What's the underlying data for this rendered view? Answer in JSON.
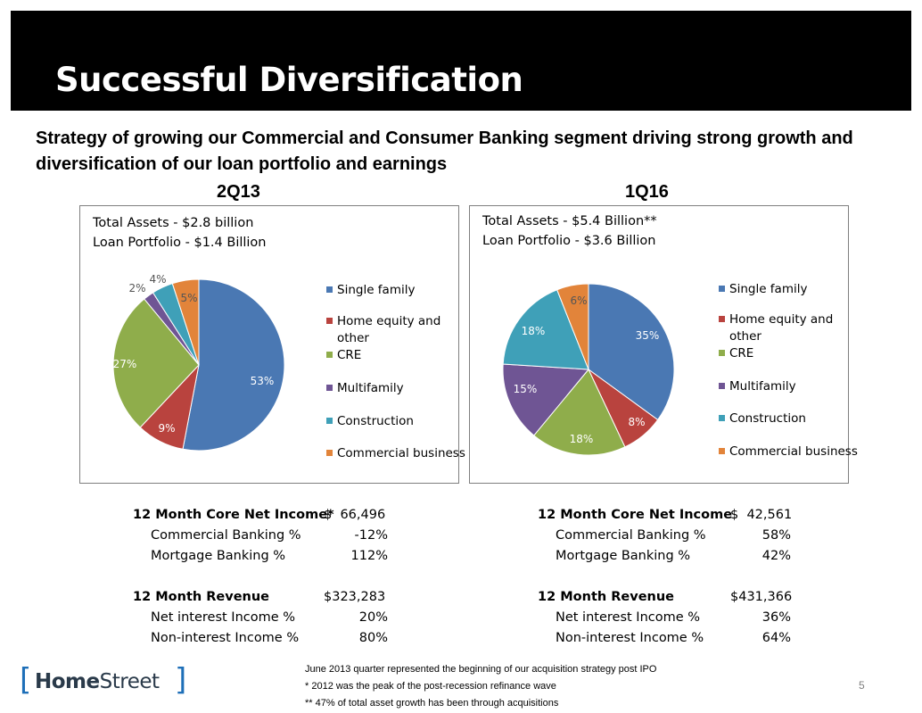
{
  "title": "Successful Diversification",
  "subtitle": "Strategy of growing our Commercial and Consumer Banking segment driving strong growth and diversification of our loan portfolio and earnings",
  "chart_data": [
    {
      "type": "pie",
      "title": "2Q13",
      "header_lines": [
        "Total Assets - $2.8 billion",
        "Loan Portfolio - $1.4 Billion"
      ],
      "categories": [
        "Single family",
        "Home equity and other",
        "CRE",
        "Multifamily",
        "Construction",
        "Commercial business"
      ],
      "values": [
        53,
        9,
        27,
        2,
        4,
        5
      ],
      "labels": [
        "53%",
        "9%",
        "27%",
        "2%",
        "4%",
        "5%"
      ],
      "colors": [
        "#4a78b3",
        "#b9433e",
        "#8fad4b",
        "#6f5594",
        "#3fa0b8",
        "#e2843a"
      ],
      "legend": "right"
    },
    {
      "type": "pie",
      "title": "1Q16",
      "header_lines": [
        "Total Assets - $5.4 Billion**",
        "Loan Portfolio - $3.6 Billion"
      ],
      "categories": [
        "Single family",
        "Home equity and other",
        "CRE",
        "Multifamily",
        "Construction",
        "Commercial business"
      ],
      "values": [
        35,
        8,
        18,
        15,
        18,
        6
      ],
      "labels": [
        "35%",
        "8%",
        "18%",
        "15%",
        "18%",
        "6%"
      ],
      "colors": [
        "#4a78b3",
        "#b9433e",
        "#8fad4b",
        "#6f5594",
        "#3fa0b8",
        "#e2843a"
      ],
      "legend": "right"
    }
  ],
  "metrics_left": [
    {
      "label": "12 Month Core Net Income*",
      "value": "$  66,496",
      "bold": true
    },
    {
      "label": "Commercial Banking %",
      "value": "-12%",
      "bold": false
    },
    {
      "label": "Mortgage Banking %",
      "value": "112%",
      "bold": false
    },
    {
      "label": "12 Month Revenue",
      "value": "$323,283",
      "bold": true
    },
    {
      "label": "Net interest Income %",
      "value": "20%",
      "bold": false
    },
    {
      "label": "Non-interest Income %",
      "value": "80%",
      "bold": false
    }
  ],
  "metrics_right": [
    {
      "label": "12 Month Core Net Income",
      "value": "$  42,561",
      "bold": true
    },
    {
      "label": "Commercial Banking %",
      "value": "58%",
      "bold": false
    },
    {
      "label": "Mortgage Banking %",
      "value": "42%",
      "bold": false
    },
    {
      "label": "12 Month Revenue",
      "value": "$431,366",
      "bold": true
    },
    {
      "label": "Net interest Income %",
      "value": "36%",
      "bold": false
    },
    {
      "label": "Non-interest Income %",
      "value": "64%",
      "bold": false
    }
  ],
  "footnotes": [
    "June 2013 quarter represented the beginning of our acquisition strategy post IPO",
    "*  2012 was the peak of the post-recession refinance wave",
    "** 47% of total asset growth has been through acquisitions"
  ],
  "logo": {
    "open": "[",
    "part1": "Home",
    "part2": "Street",
    "close": "]"
  },
  "page_number": "5"
}
